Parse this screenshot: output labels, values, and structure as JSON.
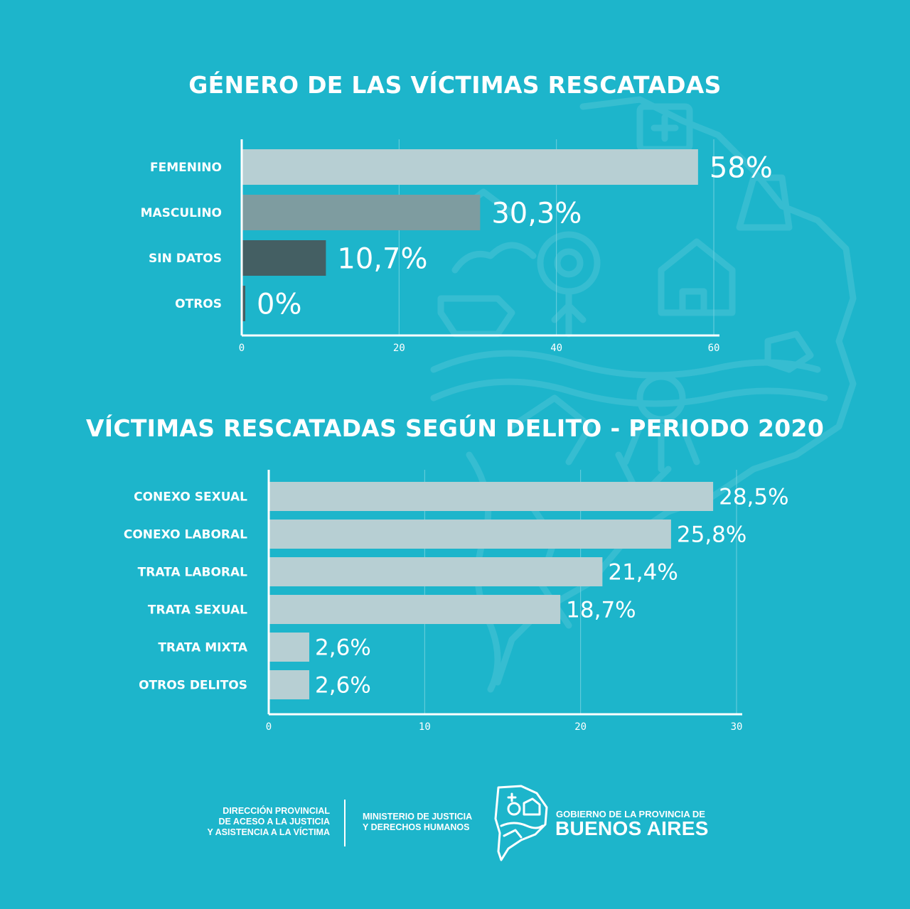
{
  "colors": {
    "background": "#1db5cb",
    "bar_light": "#b7cfd3",
    "bar_mid": "#7e9ca0",
    "bar_dark": "#445f63",
    "axis": "#ffffff"
  },
  "chart_data": [
    {
      "type": "bar",
      "orientation": "horizontal",
      "title": "GÉNERO DE LAS VÍCTIMAS RESCATADAS",
      "categories": [
        "FEMENINO",
        "MASCULINO",
        "SIN DATOS",
        "OTROS"
      ],
      "values": [
        58,
        30.3,
        10.7,
        0
      ],
      "value_labels": [
        "58%",
        "30,3%",
        "10,7%",
        "0%"
      ],
      "bar_colors": [
        "#b7cfd3",
        "#7e9ca0",
        "#445f63",
        "#445f63"
      ],
      "xlim": [
        0,
        60
      ],
      "xticks": [
        "0",
        "20",
        "40",
        "60"
      ],
      "grid": true
    },
    {
      "type": "bar",
      "orientation": "horizontal",
      "title": "VÍCTIMAS RESCATADAS SEGÚN DELITO - PERIODO 2020",
      "categories": [
        "CONEXO SEXUAL",
        "CONEXO LABORAL",
        "TRATA LABORAL",
        "TRATA SEXUAL",
        "TRATA MIXTA",
        "OTROS DELITOS"
      ],
      "values": [
        28.5,
        25.8,
        21.4,
        18.7,
        2.6,
        2.6
      ],
      "value_labels": [
        "28,5%",
        "25,8%",
        "21,4%",
        "18,7%",
        "2,6%",
        "2,6%"
      ],
      "bar_colors": [
        "#b7cfd3",
        "#b7cfd3",
        "#b7cfd3",
        "#b7cfd3",
        "#b7cfd3",
        "#b7cfd3"
      ],
      "xlim": [
        0,
        30
      ],
      "xticks": [
        "0",
        "10",
        "20",
        "30"
      ],
      "grid": true
    }
  ],
  "footer": {
    "direccion": "DIRECCIÓN PROVINCIAL\nDE ACESO A LA JUSTICIA\nY ASISTENCIA A LA VÍCTIMA",
    "ministerio": "MINISTERIO DE JUSTICIA\nY DERECHOS HUMANOS",
    "gobierno": "GOBIERNO DE LA PROVINCIA DE",
    "provincia": "BUENOS AIRES",
    "logo_icon": "buenos-aires-province-map-icon"
  }
}
